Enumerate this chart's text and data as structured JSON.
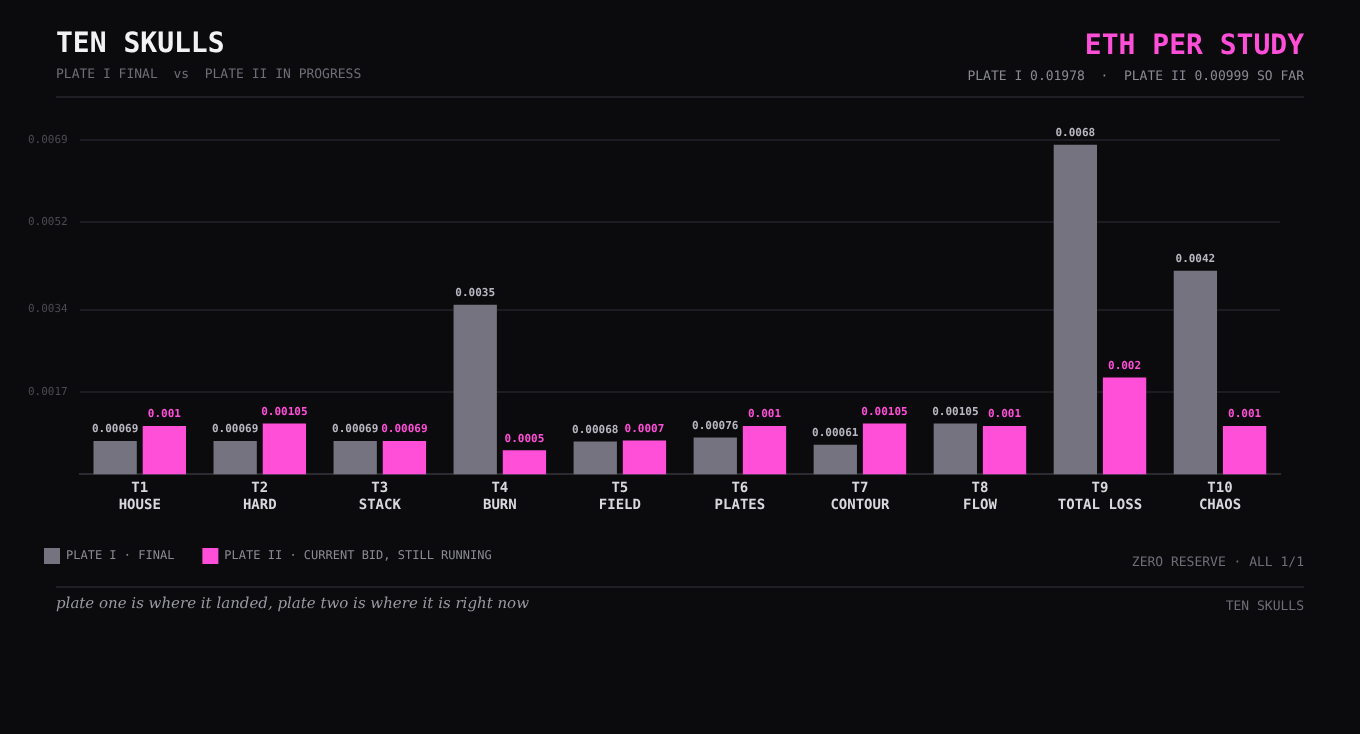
{
  "chart_data": {
    "type": "bar",
    "title": "TEN SKULLS",
    "subtitle": "PLATE I FINAL  vs  PLATE II IN PROGRESS",
    "annotations": [
      "ETH PER STUDY",
      "PLATE I 0.01978  ·  PLATE II 0.00999 SO FAR",
      "ZERO RESERVE · ALL 1/1",
      "plate one is where it landed, plate two is where it is right now",
      "TEN SKULLS"
    ],
    "categories": [
      "T1\nHOUSE",
      "T2\nHARD",
      "T3\nSTACK",
      "T4\nBURN",
      "T5\nFIELD",
      "T6\nPLATES",
      "T7\nCONTOUR",
      "T8\nFLOW",
      "T9\nTOTAL LOSS",
      "T10\nCHAOS"
    ],
    "series": [
      {
        "name": "PLATE I · FINAL",
        "color": "#74737f",
        "values": [
          0.00069,
          0.00069,
          0.00069,
          0.0035,
          0.00068,
          0.00076,
          0.00061,
          0.00105,
          0.0068,
          0.0042
        ]
      },
      {
        "name": "PLATE II · CURRENT BID, STILL RUNNING",
        "color": "#ff4fd8",
        "values": [
          0.001,
          0.00105,
          0.00069,
          0.0005,
          0.0007,
          0.001,
          0.00105,
          0.001,
          0.002,
          0.001
        ]
      }
    ],
    "ylim": [
      0,
      0.0069
    ],
    "yticks": [
      0.0017,
      0.0034,
      0.0052,
      0.0069
    ],
    "grid": "y",
    "legend": "bottom left",
    "data_labels": true
  }
}
